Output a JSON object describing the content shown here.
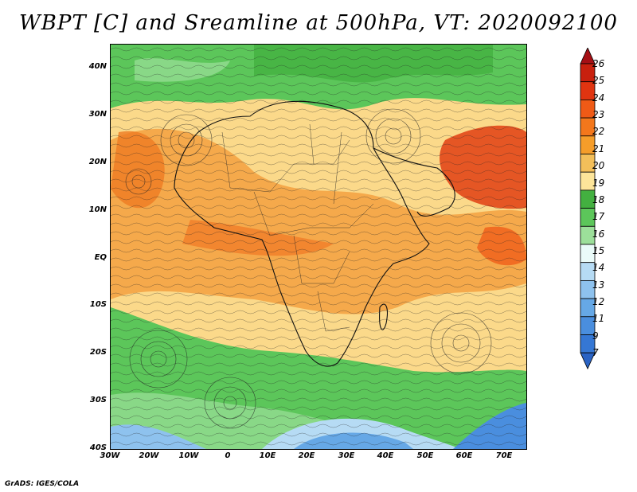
{
  "title": "WBPT [C] and Sreamline at 500hPa, VT: 2020092100",
  "credit": "GrADS: IGES/COLA",
  "axes": {
    "lat_ticks": [
      "40N",
      "30N",
      "20N",
      "10N",
      "EQ",
      "10S",
      "20S",
      "30S",
      "40S"
    ],
    "lon_ticks": [
      "30W",
      "20W",
      "10W",
      "0",
      "10E",
      "20E",
      "30E",
      "40E",
      "50E",
      "60E",
      "70E"
    ]
  },
  "colorbar": {
    "labels": [
      "26",
      "25",
      "24",
      "23",
      "22",
      "21",
      "20",
      "19",
      "18",
      "17",
      "16",
      "15",
      "14",
      "13",
      "12",
      "11",
      "9",
      "7"
    ],
    "colors": [
      "#a50f15",
      "#c8200e",
      "#e03410",
      "#ef5a16",
      "#f3771c",
      "#f59d2a",
      "#f3bf5a",
      "#fde59a",
      "#43b040",
      "#5cc65a",
      "#9cdf9a",
      "#eafbf9",
      "#b6dbf4",
      "#8ec2ee",
      "#66a8e6",
      "#4a8ede",
      "#3577d4",
      "#2a63c4"
    ]
  }
}
